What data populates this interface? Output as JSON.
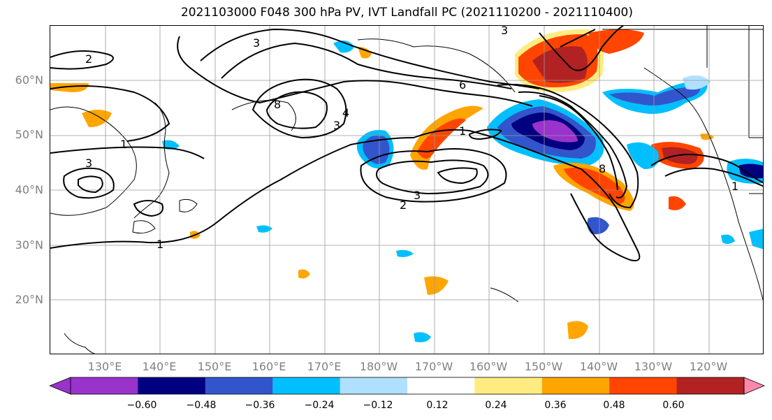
{
  "title": "2021103000 F048 300 hPa PV, IVT Landfall PC (2021110200 - 2021110400)",
  "lat_labels": [
    "60°N",
    "50°N",
    "40°N",
    "30°N",
    "20°N"
  ],
  "lon_labels": [
    "130°E",
    "140°E",
    "150°E",
    "160°E",
    "170°E",
    "180°W",
    "170°W",
    "160°W",
    "150°W",
    "140°W",
    "130°W",
    "120°W"
  ],
  "colorbar": {
    "colors": [
      "#9933cc",
      "#000080",
      "#3355cc",
      "#00bfff",
      "#b0e0ff",
      "#ffffff",
      "#ffec80",
      "#ffa500",
      "#ff4500",
      "#b22222",
      "#ff88aa"
    ],
    "tick_labels": [
      "−0.60",
      "−0.48",
      "−0.36",
      "−0.24",
      "−0.12",
      "0.12",
      "0.24",
      "0.36",
      "0.48",
      "0.60"
    ]
  },
  "contour_labels": [
    "1",
    "2",
    "3",
    "4",
    "6",
    "8"
  ]
}
